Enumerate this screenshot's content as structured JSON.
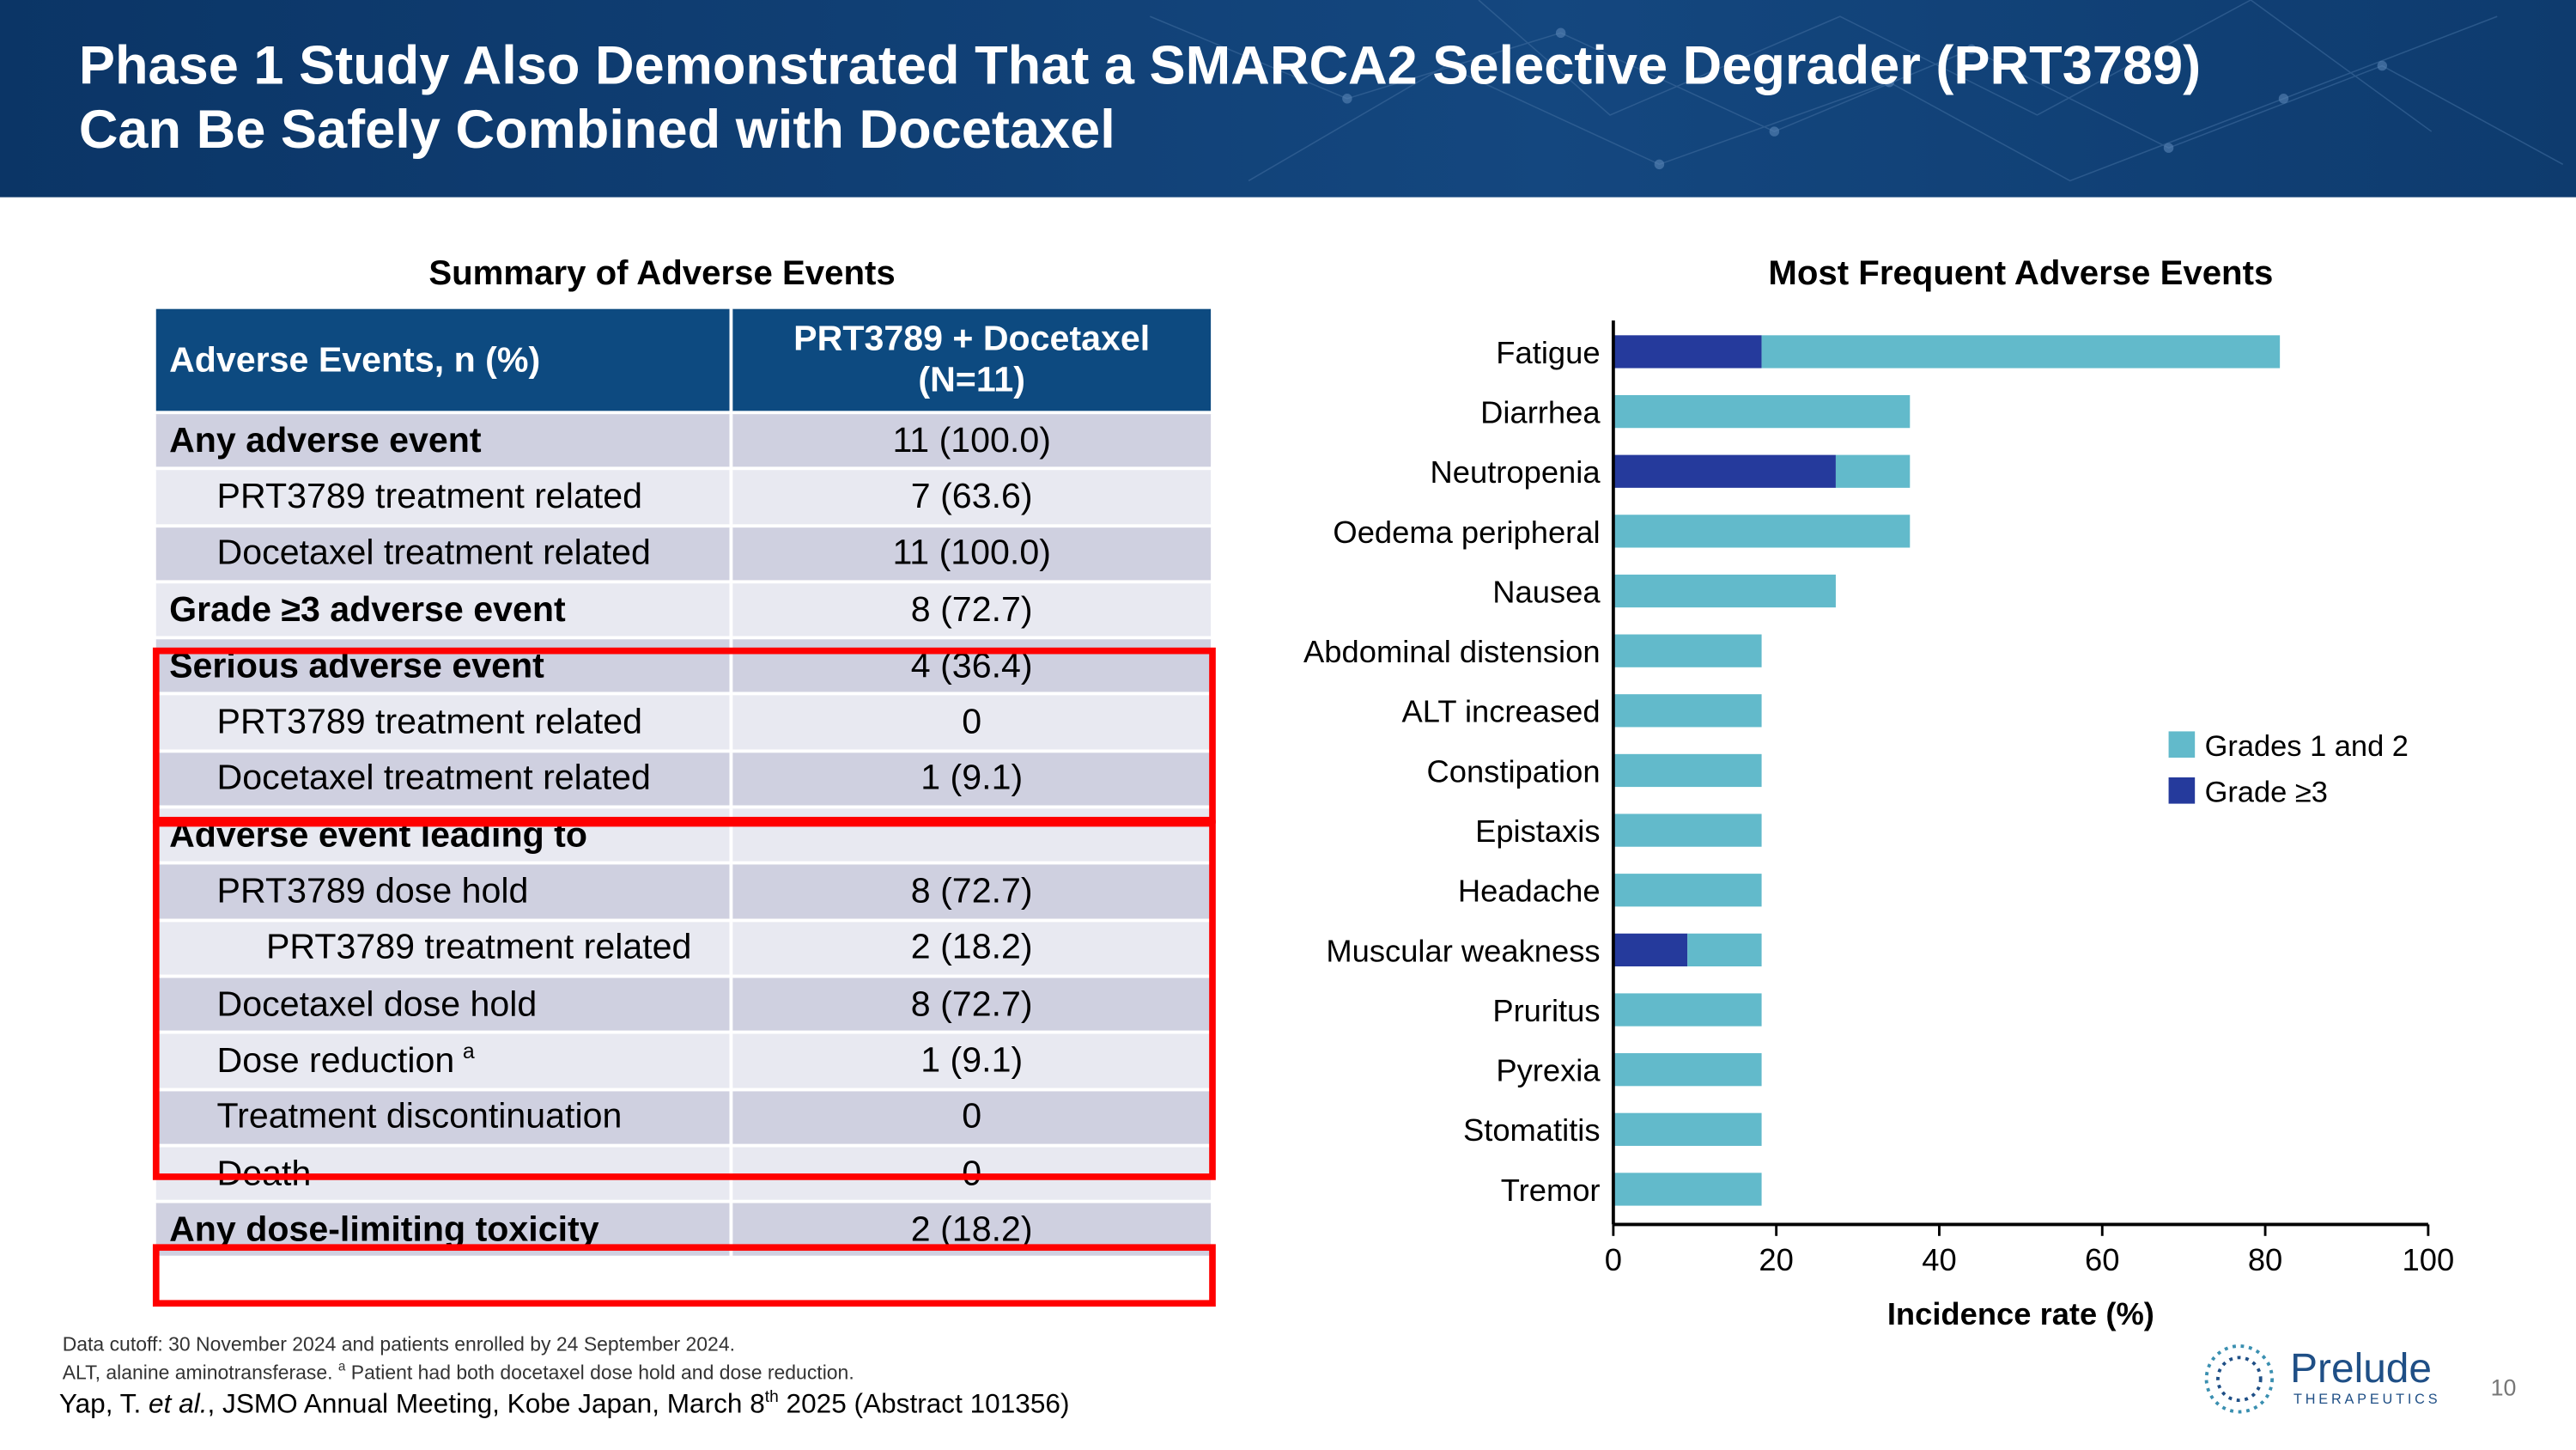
{
  "header": {
    "title_line1": "Phase 1 Study Also Demonstrated That a SMARCA2 Selective Degrader (PRT3789)",
    "title_line2": "Can Be Safely Combined with Docetaxel"
  },
  "table": {
    "title": "Summary of Adverse Events",
    "col1": "Adverse Events, n (%)",
    "col2_line1": "PRT3789 + Docetaxel",
    "col2_line2": "(N=11)",
    "rows": [
      {
        "label": "Any adverse event",
        "value": "11 (100.0)"
      },
      {
        "label": "PRT3789 treatment related",
        "value": "7 (63.6)"
      },
      {
        "label": "Docetaxel treatment related",
        "value": "11 (100.0)"
      },
      {
        "label": "Grade ≥3 adverse event",
        "value": "8 (72.7)"
      },
      {
        "label": "Serious adverse event",
        "value": "4 (36.4)"
      },
      {
        "label": "PRT3789 treatment related",
        "value": "0"
      },
      {
        "label": "Docetaxel treatment related",
        "value": "1 (9.1)"
      },
      {
        "label": "Adverse event leading to",
        "value": ""
      },
      {
        "label": "PRT3789 dose hold",
        "value": "8 (72.7)"
      },
      {
        "label": "PRT3789 treatment related",
        "value": "2 (18.2)"
      },
      {
        "label": "Docetaxel dose hold",
        "value": "8 (72.7)"
      },
      {
        "label": "Dose reduction",
        "sup": "a",
        "value": "1 (9.1)"
      },
      {
        "label": "Treatment discontinuation",
        "value": "0"
      },
      {
        "label": "Death",
        "value": "0"
      },
      {
        "label": "Any dose-limiting toxicity",
        "value": "2 (18.2)"
      }
    ]
  },
  "chart_data": {
    "type": "bar",
    "orientation": "horizontal",
    "stacked": true,
    "title": "Most Frequent Adverse Events",
    "xlabel": "Incidence rate (%)",
    "xlim": [
      0,
      100
    ],
    "xticks": [
      "0",
      "20",
      "40",
      "60",
      "80",
      "100"
    ],
    "categories": [
      "Fatigue",
      "Diarrhea",
      "Neutropenia",
      "Oedema peripheral",
      "Nausea",
      "Abdominal distension",
      "ALT increased",
      "Constipation",
      "Epistaxis",
      "Headache",
      "Muscular weakness",
      "Pruritus",
      "Pyrexia",
      "Stomatitis",
      "Tremor"
    ],
    "series": [
      {
        "name": "Grade ≥3",
        "color": "#253a9c",
        "values": [
          18.2,
          0,
          27.3,
          0,
          0,
          0,
          0,
          0,
          0,
          0,
          9.1,
          0,
          0,
          0,
          0
        ]
      },
      {
        "name": "Grades 1 and 2",
        "color": "#62bacb",
        "values": [
          63.6,
          36.4,
          9.1,
          36.4,
          27.3,
          18.2,
          18.2,
          18.2,
          18.2,
          18.2,
          9.1,
          18.2,
          18.2,
          18.2,
          18.2
        ]
      }
    ],
    "legend_position": "right",
    "legend": [
      "Grades 1 and 2",
      "Grade ≥3"
    ]
  },
  "footer": {
    "note1": "Data cutoff: 30 November 2024 and patients enrolled by 24 September 2024.",
    "note2_a": "ALT, alanine aminotransferase. ",
    "note2_sup": "a",
    "note2_b": " Patient had both docetaxel dose hold and dose reduction.",
    "cite_a": "Yap, T. ",
    "cite_etal": "et al.",
    "cite_b": ", JSMO Annual Meeting, Kobe Japan, March 8",
    "cite_sup": "th",
    "cite_c": " 2025 (Abstract 101356)",
    "logo_name": "Prelude",
    "logo_sub": "THERAPEUTICS",
    "page": "10"
  }
}
